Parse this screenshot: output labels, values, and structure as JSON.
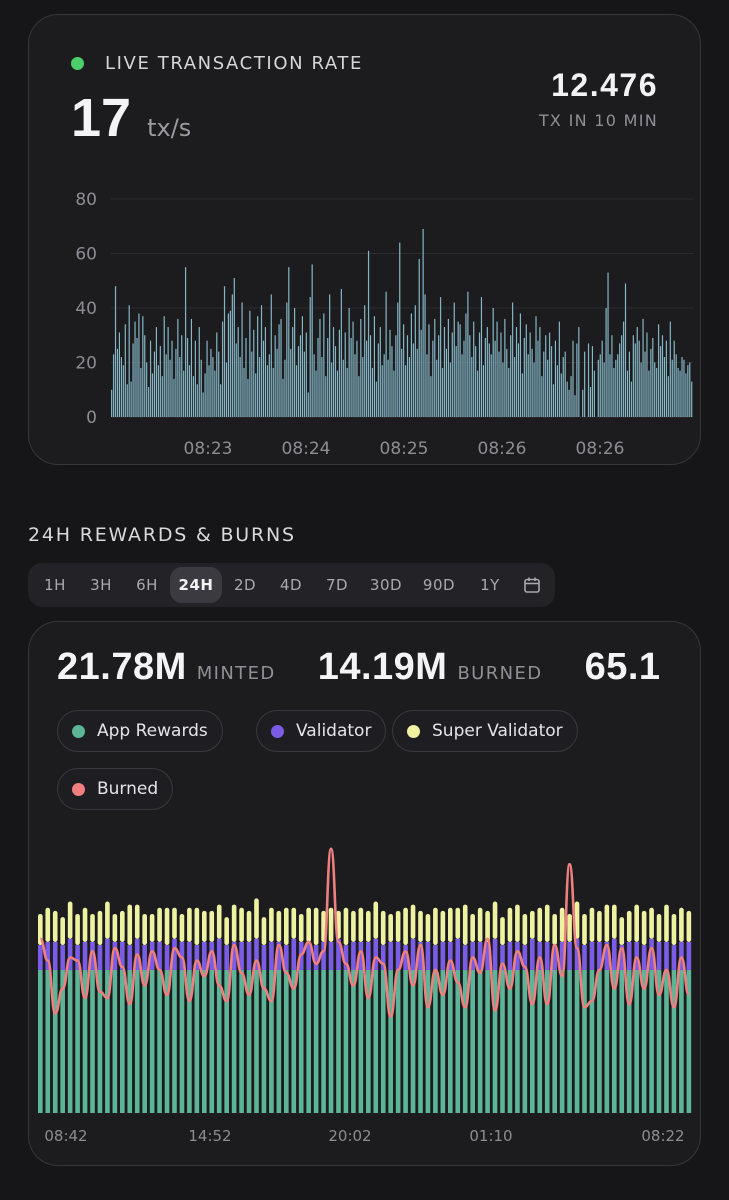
{
  "live": {
    "title": "LIVE TRANSACTION RATE",
    "rate_value": "17",
    "rate_unit": "tx/s",
    "total_value": "12.476",
    "total_caption": "TX IN 10 MIN",
    "status_color": "#4ccf6a"
  },
  "rewards": {
    "section_title": "24H REWARDS & BURNS",
    "ranges": [
      "1H",
      "3H",
      "6H",
      "24H",
      "2D",
      "4D",
      "7D",
      "30D",
      "90D",
      "1Y"
    ],
    "active_range": "24H",
    "calendar_icon": "calendar-icon",
    "stats": [
      {
        "value": "21.78M",
        "label": "MINTED"
      },
      {
        "value": "14.19M",
        "label": "BURNED"
      },
      {
        "value": "65.1",
        "label": ""
      }
    ],
    "legend": [
      {
        "label": "App Rewards",
        "color": "#5cb596"
      },
      {
        "label": "Validator",
        "color": "#7b5ce6"
      },
      {
        "label": "Super Validator",
        "color": "#eff2a0"
      },
      {
        "label": "Burned",
        "color": "#f07f7f"
      }
    ]
  },
  "chart_data": [
    {
      "type": "bar",
      "title": "LIVE TRANSACTION RATE",
      "ylim": [
        0,
        80
      ],
      "yticks": [
        0,
        20,
        40,
        60,
        80
      ],
      "xticks": [
        "08:23",
        "08:24",
        "08:25",
        "08:26",
        "08:26"
      ],
      "grid": true,
      "values": [
        10,
        23,
        48,
        25,
        31,
        22,
        19,
        34,
        12,
        41,
        13,
        27,
        35,
        29,
        38,
        18,
        37,
        30,
        20,
        11,
        28,
        16,
        24,
        33,
        19,
        26,
        15,
        37,
        23,
        33,
        21,
        28,
        14,
        25,
        36,
        22,
        30,
        17,
        55,
        29,
        19,
        36,
        15,
        28,
        12,
        33,
        21,
        9,
        16,
        28,
        19,
        25,
        22,
        17,
        31,
        24,
        12,
        35,
        48,
        20,
        38,
        39,
        45,
        51,
        27,
        33,
        22,
        42,
        18,
        29,
        14,
        39,
        24,
        32,
        16,
        37,
        22,
        41,
        28,
        33,
        19,
        23,
        45,
        18,
        30,
        25,
        34,
        36,
        14,
        21,
        42,
        55,
        25,
        33,
        40,
        19,
        26,
        30,
        37,
        24,
        31,
        9,
        44,
        56,
        23,
        17,
        29,
        36,
        22,
        38,
        15,
        29,
        45,
        20,
        33,
        26,
        17,
        32,
        47,
        21,
        31,
        18,
        40,
        29,
        35,
        23,
        28,
        15,
        36,
        22,
        41,
        28,
        61,
        30,
        18,
        37,
        13,
        27,
        33,
        19,
        23,
        46,
        21,
        32,
        26,
        17,
        30,
        42,
        64,
        25,
        34,
        19,
        30,
        22,
        38,
        27,
        41,
        25,
        58,
        32,
        69,
        45,
        23,
        34,
        15,
        28,
        36,
        21,
        30,
        44,
        18,
        33,
        25,
        36,
        20,
        31,
        42,
        26,
        35,
        34,
        23,
        28,
        38,
        46,
        30,
        22,
        35,
        26,
        17,
        31,
        44,
        19,
        29,
        33,
        27,
        23,
        40,
        28,
        35,
        24,
        31,
        20,
        36,
        25,
        18,
        30,
        42,
        22,
        33,
        27,
        38,
        16,
        29,
        34,
        23,
        31,
        25,
        20,
        37,
        28,
        33,
        15,
        24,
        30,
        21,
        31,
        26,
        12,
        28,
        19,
        35,
        16,
        22,
        24,
        13,
        10,
        15,
        28,
        8,
        27,
        33,
        0,
        10,
        24,
        0,
        27,
        11,
        26,
        17,
        0,
        21,
        23,
        28,
        20,
        40,
        53,
        23,
        30,
        18,
        21,
        23,
        27,
        30,
        35,
        49,
        17,
        24,
        13,
        30,
        27,
        33,
        28,
        20,
        36,
        24,
        31,
        17,
        25,
        29,
        20,
        18,
        34,
        26,
        30,
        22,
        28,
        15,
        35,
        21,
        28,
        23,
        18,
        17,
        22,
        21,
        16,
        19,
        20,
        13
      ]
    },
    {
      "type": "bar",
      "stacked": true,
      "series": [
        {
          "name": "App Rewards",
          "values": [
            46,
            46,
            46,
            46,
            46,
            46,
            46,
            46,
            46,
            46,
            46,
            46,
            46,
            46,
            46,
            46,
            46,
            46,
            46,
            46,
            46,
            46,
            46,
            46,
            46,
            46,
            46,
            46,
            46,
            46,
            46,
            46,
            46,
            46,
            46,
            46,
            46,
            46,
            46,
            46,
            46,
            46,
            46,
            46,
            46,
            46,
            46,
            46,
            46,
            46,
            46,
            46,
            46,
            46,
            46,
            46,
            46,
            46,
            46,
            46,
            46,
            46,
            46,
            46,
            46,
            46,
            46,
            46,
            46,
            46,
            46,
            46,
            46,
            46,
            46,
            46,
            46,
            46,
            46,
            46,
            46,
            46,
            46,
            46,
            46,
            46,
            46,
            46
          ]
        },
        {
          "name": "Validator",
          "values": [
            8,
            9,
            9,
            8,
            10,
            8,
            9,
            9,
            8,
            10,
            9,
            9,
            8,
            10,
            8,
            9,
            9,
            8,
            10,
            9,
            9,
            8,
            9,
            9,
            10,
            8,
            9,
            9,
            9,
            10,
            8,
            9,
            9,
            8,
            10,
            9,
            9,
            8,
            9,
            9,
            10,
            8,
            9,
            9,
            9,
            10,
            8,
            9,
            9,
            8,
            10,
            9,
            9,
            8,
            9,
            9,
            10,
            8,
            9,
            9,
            9,
            10,
            8,
            9,
            9,
            8,
            10,
            9,
            9,
            8,
            9,
            9,
            10,
            8,
            9,
            9,
            9,
            10,
            8,
            9,
            9,
            8,
            10,
            9,
            9,
            8,
            9,
            9
          ]
        },
        {
          "name": "Super Validator",
          "values": [
            10,
            11,
            10,
            9,
            12,
            10,
            11,
            9,
            11,
            12,
            9,
            10,
            13,
            11,
            10,
            9,
            11,
            12,
            10,
            9,
            11,
            12,
            10,
            10,
            11,
            9,
            12,
            11,
            10,
            13,
            9,
            11,
            10,
            12,
            10,
            9,
            11,
            12,
            10,
            11,
            9,
            12,
            10,
            11,
            10,
            12,
            11,
            9,
            10,
            12,
            11,
            10,
            9,
            12,
            10,
            11,
            10,
            13,
            9,
            11,
            10,
            12,
            9,
            11,
            12,
            10,
            9,
            11,
            12,
            10,
            11,
            9,
            12,
            10,
            11,
            10,
            12,
            11,
            9,
            10,
            12,
            11,
            10,
            9,
            12,
            10,
            11,
            10
          ]
        },
        {
          "name": "Burned",
          "values": [
            56,
            49,
            32,
            40,
            50,
            49,
            37,
            52,
            39,
            37,
            53,
            47,
            35,
            51,
            41,
            52,
            46,
            38,
            53,
            50,
            36,
            49,
            44,
            52,
            41,
            36,
            54,
            45,
            38,
            49,
            40,
            36,
            54,
            45,
            40,
            51,
            55,
            48,
            52,
            85,
            55,
            48,
            41,
            52,
            37,
            50,
            48,
            31,
            46,
            52,
            41,
            54,
            34,
            46,
            38,
            49,
            42,
            34,
            50,
            45,
            56,
            33,
            48,
            40,
            52,
            47,
            35,
            50,
            35,
            54,
            44,
            80,
            53,
            34,
            36,
            46,
            54,
            40,
            53,
            35,
            50,
            40,
            53,
            38,
            46,
            34,
            50,
            38
          ]
        }
      ],
      "xticks": [
        "08:42",
        "14:52",
        "20:02",
        "01:10",
        "08:22"
      ]
    }
  ]
}
